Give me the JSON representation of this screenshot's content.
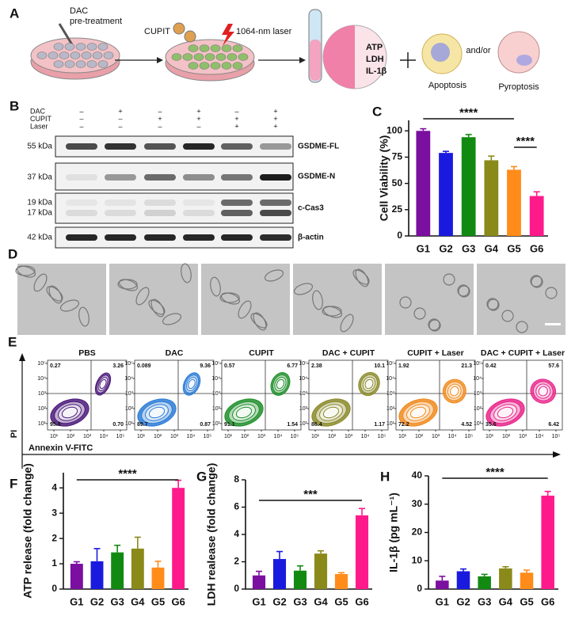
{
  "panel_labels": [
    "A",
    "B",
    "C",
    "D",
    "E",
    "F",
    "G",
    "H"
  ],
  "schematic": {
    "pretreatment": [
      "DAC",
      "pre-treatment"
    ],
    "agent": "CUPIT",
    "laser": "1064-nm laser",
    "markers": [
      {
        "text": "ATP",
        "color": "#f08a1e"
      },
      {
        "text": "LDH",
        "color": "#2b5fd6"
      },
      {
        "text": "IL-1β",
        "color": "#3a9a2a"
      }
    ],
    "and_or": "and/or",
    "outcomes": [
      "Apoptosis",
      "Pyroptosis"
    ]
  },
  "western_blot": {
    "conditions": [
      {
        "name": "DAC",
        "signs": [
          "–",
          "+",
          "–",
          "+",
          "–",
          "+"
        ]
      },
      {
        "name": "CUPIT",
        "signs": [
          "–",
          "–",
          "+",
          "+",
          "+",
          "+"
        ]
      },
      {
        "name": "Laser",
        "signs": [
          "–",
          "–",
          "–",
          "–",
          "+",
          "+"
        ]
      }
    ],
    "bands": [
      {
        "name": "GSDME-FL",
        "kda": [
          "55 kDa"
        ]
      },
      {
        "name": "GSDME-N",
        "kda": [
          "37 kDa"
        ]
      },
      {
        "name": "c-Cas3",
        "kda": [
          "19 kDa",
          "17 kDa"
        ]
      },
      {
        "name": "β-actin",
        "kda": [
          "42 kDa"
        ]
      }
    ]
  },
  "flow_cytometry": {
    "x_label": "Annexin V-FITC",
    "y_label": "PI",
    "ticks": [
      {
        "value": 10,
        "label": "10¹"
      },
      {
        "value": 100,
        "label": "10²"
      },
      {
        "value": 1000,
        "label": "10³"
      },
      {
        "value": 10000,
        "label": "10⁴"
      },
      {
        "value": 100000,
        "label": "10⁵"
      }
    ],
    "panels": [
      {
        "title": "PBS",
        "color": "#4b1a7a",
        "quadrants": [
          "0.27",
          "3.26",
          "95.8",
          "0.70"
        ]
      },
      {
        "title": "DAC",
        "color": "#2b7bd6",
        "quadrants": [
          "0.089",
          "9.36",
          "89.7",
          "0.87"
        ]
      },
      {
        "title": "CUPIT",
        "color": "#1f8f2a",
        "quadrants": [
          "0.57",
          "6.77",
          "91.1",
          "1.54"
        ]
      },
      {
        "title": "DAC + CUPIT",
        "color": "#8a8a2a",
        "quadrants": [
          "2.38",
          "10.1",
          "86.4",
          "1.17"
        ]
      },
      {
        "title": "CUPIT + Laser",
        "color": "#f08a1e",
        "quadrants": [
          "1.92",
          "21.3",
          "72.2",
          "4.52"
        ]
      },
      {
        "title": "DAC + CUPIT + Laser",
        "color": "#e8248a",
        "quadrants": [
          "0.42",
          "57.6",
          "35.6",
          "6.42"
        ]
      }
    ]
  },
  "chart_data": [
    {
      "type": "bar",
      "ylabel": "Cell Viability (%)",
      "categories": [
        "G1",
        "G2",
        "G3",
        "G4",
        "G5",
        "G6"
      ],
      "values": [
        100,
        79,
        94,
        72,
        63,
        38
      ],
      "errors": [
        2,
        1.5,
        2.5,
        4,
        3,
        4
      ],
      "colors": [
        "#7b0fa0",
        "#1a1adf",
        "#128a12",
        "#8a8a1a",
        "#ff8c1a",
        "#ff1a8c"
      ],
      "ylim": [
        0,
        110
      ],
      "yticks": [
        0,
        25,
        50,
        75,
        100
      ],
      "annotations": [
        {
          "text": "****",
          "span": [
            "G1",
            "G5"
          ]
        },
        {
          "text": "****",
          "span": [
            "G5",
            "G6"
          ]
        }
      ]
    },
    {
      "type": "bar",
      "ylabel": "ATP release (fold change)",
      "categories": [
        "G1",
        "G2",
        "G3",
        "G4",
        "G5",
        "G6"
      ],
      "values": [
        1.0,
        1.1,
        1.45,
        1.6,
        0.85,
        4.0
      ],
      "errors": [
        0.08,
        0.5,
        0.28,
        0.45,
        0.25,
        0.3
      ],
      "colors": [
        "#7b0fa0",
        "#1a1adf",
        "#128a12",
        "#8a8a1a",
        "#ff8c1a",
        "#ff1a8c"
      ],
      "ylim": [
        0,
        4.6
      ],
      "yticks": [
        0,
        1,
        2,
        3,
        4
      ],
      "annotations": [
        {
          "text": "****",
          "span": [
            "G1",
            "G6"
          ]
        }
      ]
    },
    {
      "type": "bar",
      "ylabel": "LDH realease (fold change)",
      "categories": [
        "G1",
        "G2",
        "G3",
        "G4",
        "G5",
        "G6"
      ],
      "values": [
        1.0,
        2.2,
        1.35,
        2.6,
        1.1,
        5.4
      ],
      "errors": [
        0.3,
        0.55,
        0.35,
        0.2,
        0.1,
        0.5
      ],
      "colors": [
        "#7b0fa0",
        "#1a1adf",
        "#128a12",
        "#8a8a1a",
        "#ff8c1a",
        "#ff1a8c"
      ],
      "ylim": [
        0,
        8
      ],
      "yticks": [
        0,
        2,
        4,
        6,
        8
      ],
      "annotations": [
        {
          "text": "***",
          "span": [
            "G1",
            "G6"
          ]
        }
      ]
    },
    {
      "type": "bar",
      "ylabel": "IL-1β (pg mL⁻¹)",
      "categories": [
        "G1",
        "G2",
        "G3",
        "G4",
        "G5",
        "G6"
      ],
      "values": [
        3,
        6.3,
        4.5,
        7.3,
        5.8,
        33
      ],
      "errors": [
        1.5,
        0.8,
        0.7,
        0.6,
        0.9,
        1.5
      ],
      "colors": [
        "#7b0fa0",
        "#1a1adf",
        "#128a12",
        "#8a8a1a",
        "#ff8c1a",
        "#ff1a8c"
      ],
      "ylim": [
        0,
        40
      ],
      "yticks": [
        0,
        10,
        20,
        30,
        40
      ],
      "annotations": [
        {
          "text": "****",
          "span": [
            "G1",
            "G6"
          ]
        }
      ]
    }
  ]
}
